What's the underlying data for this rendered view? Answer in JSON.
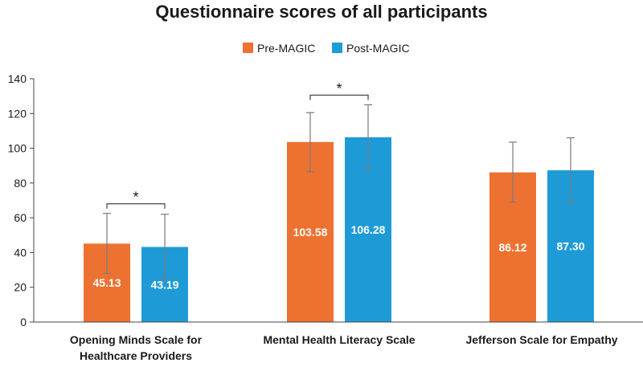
{
  "chart_data": {
    "type": "bar",
    "title": "Questionnaire scores of all participants",
    "xlabel": "",
    "ylabel": "",
    "ylim": [
      0,
      140
    ],
    "yticks": [
      0,
      20,
      40,
      60,
      80,
      100,
      120,
      140
    ],
    "grid": false,
    "legend_position": "top-center",
    "categories": [
      [
        "Opening Minds Scale for",
        "Healthcare Providers"
      ],
      [
        "Mental Health Literacy Scale"
      ],
      [
        "Jefferson Scale for Empathy"
      ]
    ],
    "series": [
      {
        "name": "Pre-MAGIC",
        "color": "#ED7232",
        "values": [
          45.13,
          103.58,
          86.12
        ],
        "labels": [
          "45.13",
          "103.58",
          "86.12"
        ],
        "error_low": [
          28,
          86.5,
          69
        ],
        "error_high": [
          62.5,
          120.5,
          103.5
        ]
      },
      {
        "name": "Post-MAGIC",
        "color": "#1E9BD7",
        "values": [
          43.19,
          106.28,
          87.3
        ],
        "labels": [
          "43.19",
          "106.28",
          "87.30"
        ],
        "error_low": [
          24.5,
          87.5,
          68.5
        ],
        "error_high": [
          62,
          125,
          106
        ]
      }
    ],
    "significance": [
      {
        "category_index": 0,
        "marker": "*"
      },
      {
        "category_index": 1,
        "marker": "*"
      }
    ]
  }
}
